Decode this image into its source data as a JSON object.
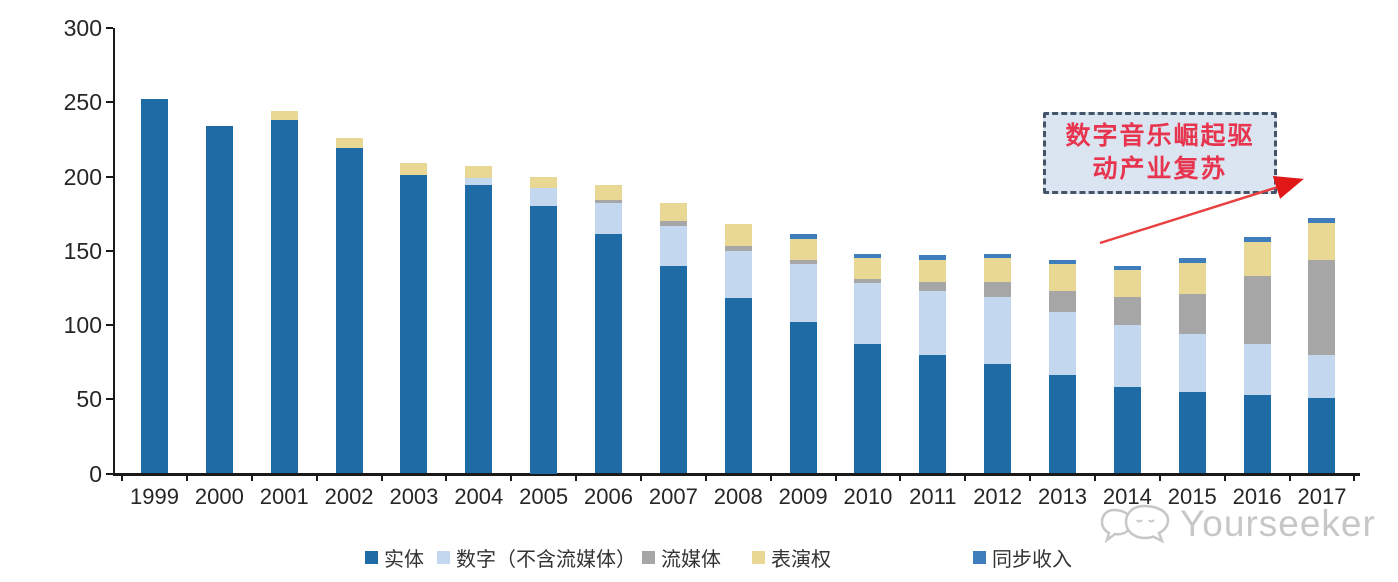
{
  "chart_data": {
    "type": "bar",
    "stacked": true,
    "title": "",
    "xlabel": "",
    "ylabel": "",
    "categories": [
      "1999",
      "2000",
      "2001",
      "2002",
      "2003",
      "2004",
      "2005",
      "2006",
      "2007",
      "2008",
      "2009",
      "2010",
      "2011",
      "2012",
      "2013",
      "2014",
      "2015",
      "2016",
      "2017"
    ],
    "series": [
      {
        "name": "实体",
        "color": "#1f6ba6",
        "values": [
          252,
          234,
          238,
          219,
          201,
          194,
          180,
          161,
          140,
          118,
          102,
          87,
          80,
          74,
          66,
          58,
          55,
          53,
          51
        ]
      },
      {
        "name": "数字（不含流媒体）",
        "color": "#c3d8ee",
        "values": [
          0,
          0,
          0,
          0,
          0,
          5,
          12,
          21,
          27,
          32,
          39,
          41,
          43,
          45,
          43,
          42,
          39,
          34,
          29
        ]
      },
      {
        "name": "流媒体",
        "color": "#a6a6a6",
        "values": [
          0,
          0,
          0,
          0,
          0,
          0,
          0,
          2,
          3,
          3,
          3,
          3,
          6,
          10,
          14,
          19,
          27,
          46,
          64
        ]
      },
      {
        "name": "表演权",
        "color": "#e9d794",
        "values": [
          0,
          0,
          6,
          7,
          8,
          8,
          8,
          10,
          12,
          15,
          14,
          14,
          15,
          16,
          18,
          18,
          21,
          23,
          25
        ]
      },
      {
        "name": "同步收入",
        "color": "#3f7ebd",
        "values": [
          0,
          0,
          0,
          0,
          0,
          0,
          0,
          0,
          0,
          0,
          3,
          3,
          3,
          3,
          3,
          3,
          3,
          3,
          3
        ]
      }
    ],
    "ylim": [
      0,
      300
    ],
    "yticks": [
      0,
      50,
      100,
      150,
      200,
      250,
      300
    ],
    "grid": false,
    "legend_position": "bottom"
  },
  "annotation": {
    "text": "数字音乐崛起驱动产业复苏",
    "line1": "数字音乐崛起驱",
    "line2": "动产业复苏",
    "text_color": "#e8354f",
    "box_fill": "#dbe5f2",
    "border_color": "#44546a",
    "arrow_color": "#e53030"
  },
  "watermark": {
    "text": "Yourseeker"
  },
  "colors": {
    "axis": "#1a1a1a",
    "tick_label": "#262626",
    "background": "#ffffff"
  }
}
